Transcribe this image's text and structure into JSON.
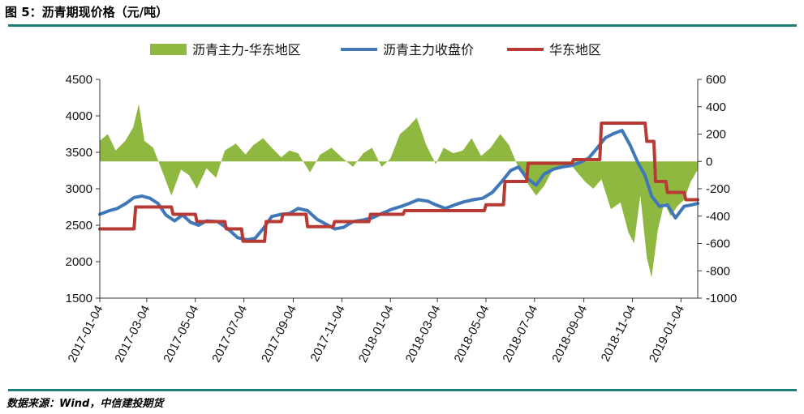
{
  "figure": {
    "title": "图 5：沥青期现价格（元/吨）",
    "source": "数据来源：Wind，中信建投期货"
  },
  "chart_data": {
    "type": "line",
    "legend_position": "top",
    "grid": false,
    "x_ticks": [
      "2017-01-04",
      "2017-03-04",
      "2017-05-04",
      "2017-07-04",
      "2017-09-04",
      "2017-11-04",
      "2018-01-04",
      "2018-03-04",
      "2018-05-04",
      "2018-07-04",
      "2018-09-04",
      "2018-11-04",
      "2019-01-04"
    ],
    "xlim": [
      "2017-01-04",
      "2019-01-25"
    ],
    "y_left": {
      "min": 1500,
      "max": 4500,
      "ticks": [
        1500,
        2000,
        2500,
        3000,
        3500,
        4000,
        4500
      ]
    },
    "y_right": {
      "min": -1000,
      "max": 600,
      "ticks": [
        -1000,
        -800,
        -600,
        -400,
        -200,
        0,
        200,
        400,
        600
      ]
    },
    "series": [
      {
        "name": "沥青主力-华东地区",
        "type": "area",
        "axis": "right",
        "color": "#8fb840",
        "points": [
          [
            "2017-01-04",
            150
          ],
          [
            "2017-01-14",
            200
          ],
          [
            "2017-01-24",
            80
          ],
          [
            "2017-02-05",
            150
          ],
          [
            "2017-02-15",
            250
          ],
          [
            "2017-02-22",
            420
          ],
          [
            "2017-03-01",
            150
          ],
          [
            "2017-03-12",
            100
          ],
          [
            "2017-03-22",
            -50
          ],
          [
            "2017-04-04",
            -250
          ],
          [
            "2017-04-16",
            -60
          ],
          [
            "2017-04-26",
            -100
          ],
          [
            "2017-05-06",
            -200
          ],
          [
            "2017-05-18",
            -50
          ],
          [
            "2017-05-30",
            -120
          ],
          [
            "2017-06-10",
            80
          ],
          [
            "2017-06-24",
            130
          ],
          [
            "2017-07-06",
            50
          ],
          [
            "2017-07-16",
            120
          ],
          [
            "2017-07-28",
            170
          ],
          [
            "2017-08-08",
            100
          ],
          [
            "2017-08-20",
            30
          ],
          [
            "2017-08-30",
            80
          ],
          [
            "2017-09-10",
            60
          ],
          [
            "2017-09-25",
            -80
          ],
          [
            "2017-10-08",
            50
          ],
          [
            "2017-10-22",
            100
          ],
          [
            "2017-11-04",
            30
          ],
          [
            "2017-11-18",
            -40
          ],
          [
            "2017-12-01",
            60
          ],
          [
            "2017-12-12",
            100
          ],
          [
            "2017-12-24",
            -40
          ],
          [
            "2018-01-04",
            20
          ],
          [
            "2018-01-16",
            200
          ],
          [
            "2018-01-26",
            250
          ],
          [
            "2018-02-06",
            320
          ],
          [
            "2018-02-18",
            120
          ],
          [
            "2018-03-02",
            -20
          ],
          [
            "2018-03-12",
            100
          ],
          [
            "2018-03-24",
            60
          ],
          [
            "2018-04-05",
            80
          ],
          [
            "2018-04-16",
            170
          ],
          [
            "2018-04-28",
            40
          ],
          [
            "2018-05-10",
            100
          ],
          [
            "2018-05-22",
            200
          ],
          [
            "2018-06-02",
            120
          ],
          [
            "2018-06-12",
            -20
          ],
          [
            "2018-06-24",
            -150
          ],
          [
            "2018-07-06",
            -250
          ],
          [
            "2018-07-16",
            -180
          ],
          [
            "2018-07-26",
            -70
          ],
          [
            "2018-08-06",
            -50
          ],
          [
            "2018-08-18",
            -20
          ],
          [
            "2018-08-28",
            -90
          ],
          [
            "2018-09-06",
            -150
          ],
          [
            "2018-09-16",
            -200
          ],
          [
            "2018-09-26",
            -130
          ],
          [
            "2018-10-08",
            -350
          ],
          [
            "2018-10-20",
            -300
          ],
          [
            "2018-10-30",
            -520
          ],
          [
            "2018-11-06",
            -600
          ],
          [
            "2018-11-14",
            -250
          ],
          [
            "2018-11-22",
            -700
          ],
          [
            "2018-11-28",
            -850
          ],
          [
            "2018-12-06",
            -500
          ],
          [
            "2018-12-14",
            -300
          ],
          [
            "2018-12-22",
            -400
          ],
          [
            "2018-12-30",
            -330
          ],
          [
            "2019-01-08",
            -280
          ],
          [
            "2019-01-16",
            -150
          ],
          [
            "2019-01-25",
            -60
          ]
        ]
      },
      {
        "name": "沥青主力收盘价",
        "type": "line",
        "axis": "left",
        "color": "#3f77b8",
        "points": [
          [
            "2017-01-04",
            2650
          ],
          [
            "2017-01-16",
            2700
          ],
          [
            "2017-01-26",
            2730
          ],
          [
            "2017-02-06",
            2800
          ],
          [
            "2017-02-16",
            2880
          ],
          [
            "2017-02-26",
            2900
          ],
          [
            "2017-03-08",
            2870
          ],
          [
            "2017-03-18",
            2800
          ],
          [
            "2017-03-28",
            2640
          ],
          [
            "2017-04-08",
            2560
          ],
          [
            "2017-04-18",
            2640
          ],
          [
            "2017-04-28",
            2540
          ],
          [
            "2017-05-08",
            2500
          ],
          [
            "2017-05-18",
            2560
          ],
          [
            "2017-06-01",
            2550
          ],
          [
            "2017-06-14",
            2450
          ],
          [
            "2017-06-26",
            2330
          ],
          [
            "2017-07-08",
            2300
          ],
          [
            "2017-07-18",
            2320
          ],
          [
            "2017-07-28",
            2450
          ],
          [
            "2017-08-08",
            2620
          ],
          [
            "2017-08-20",
            2650
          ],
          [
            "2017-08-30",
            2660
          ],
          [
            "2017-09-10",
            2730
          ],
          [
            "2017-09-22",
            2700
          ],
          [
            "2017-10-04",
            2580
          ],
          [
            "2017-10-16",
            2510
          ],
          [
            "2017-10-26",
            2450
          ],
          [
            "2017-11-06",
            2470
          ],
          [
            "2017-11-18",
            2550
          ],
          [
            "2017-11-30",
            2570
          ],
          [
            "2017-12-12",
            2600
          ],
          [
            "2017-12-24",
            2660
          ],
          [
            "2018-01-06",
            2720
          ],
          [
            "2018-01-18",
            2760
          ],
          [
            "2018-01-28",
            2800
          ],
          [
            "2018-02-08",
            2850
          ],
          [
            "2018-02-20",
            2830
          ],
          [
            "2018-03-02",
            2780
          ],
          [
            "2018-03-14",
            2730
          ],
          [
            "2018-03-26",
            2780
          ],
          [
            "2018-04-06",
            2820
          ],
          [
            "2018-04-18",
            2850
          ],
          [
            "2018-04-30",
            2870
          ],
          [
            "2018-05-12",
            2950
          ],
          [
            "2018-05-24",
            3100
          ],
          [
            "2018-06-04",
            3250
          ],
          [
            "2018-06-14",
            3300
          ],
          [
            "2018-06-24",
            3150
          ],
          [
            "2018-07-06",
            3050
          ],
          [
            "2018-07-16",
            3200
          ],
          [
            "2018-07-28",
            3270
          ],
          [
            "2018-08-08",
            3300
          ],
          [
            "2018-08-20",
            3320
          ],
          [
            "2018-08-30",
            3360
          ],
          [
            "2018-09-10",
            3420
          ],
          [
            "2018-09-20",
            3550
          ],
          [
            "2018-10-01",
            3700
          ],
          [
            "2018-10-12",
            3760
          ],
          [
            "2018-10-22",
            3800
          ],
          [
            "2018-11-01",
            3600
          ],
          [
            "2018-11-10",
            3380
          ],
          [
            "2018-11-20",
            3180
          ],
          [
            "2018-11-28",
            2900
          ],
          [
            "2018-12-08",
            2760
          ],
          [
            "2018-12-18",
            2780
          ],
          [
            "2018-12-28",
            2600
          ],
          [
            "2019-01-08",
            2760
          ],
          [
            "2019-01-18",
            2780
          ],
          [
            "2019-01-25",
            2800
          ]
        ]
      },
      {
        "name": "华东地区",
        "type": "step",
        "axis": "left",
        "color": "#b83a34",
        "points": [
          [
            "2017-01-04",
            2450
          ],
          [
            "2017-02-16",
            2450
          ],
          [
            "2017-02-18",
            2750
          ],
          [
            "2017-04-04",
            2750
          ],
          [
            "2017-04-06",
            2650
          ],
          [
            "2017-05-04",
            2650
          ],
          [
            "2017-05-06",
            2550
          ],
          [
            "2017-06-10",
            2550
          ],
          [
            "2017-06-12",
            2450
          ],
          [
            "2017-07-01",
            2450
          ],
          [
            "2017-07-03",
            2280
          ],
          [
            "2017-07-30",
            2280
          ],
          [
            "2017-08-01",
            2550
          ],
          [
            "2017-08-20",
            2550
          ],
          [
            "2017-08-22",
            2650
          ],
          [
            "2017-09-20",
            2650
          ],
          [
            "2017-09-22",
            2480
          ],
          [
            "2017-10-24",
            2480
          ],
          [
            "2017-10-26",
            2550
          ],
          [
            "2017-12-08",
            2550
          ],
          [
            "2017-12-10",
            2650
          ],
          [
            "2018-01-20",
            2650
          ],
          [
            "2018-01-22",
            2700
          ],
          [
            "2018-05-02",
            2700
          ],
          [
            "2018-05-04",
            2780
          ],
          [
            "2018-05-26",
            2780
          ],
          [
            "2018-05-28",
            3100
          ],
          [
            "2018-06-24",
            3100
          ],
          [
            "2018-06-26",
            3350
          ],
          [
            "2018-08-20",
            3350
          ],
          [
            "2018-08-22",
            3400
          ],
          [
            "2018-09-24",
            3400
          ],
          [
            "2018-09-26",
            3900
          ],
          [
            "2018-11-20",
            3900
          ],
          [
            "2018-11-22",
            3650
          ],
          [
            "2018-12-01",
            3650
          ],
          [
            "2018-12-03",
            3100
          ],
          [
            "2018-12-16",
            3100
          ],
          [
            "2018-12-18",
            2950
          ],
          [
            "2019-01-08",
            2950
          ],
          [
            "2019-01-10",
            2850
          ],
          [
            "2019-01-25",
            2850
          ]
        ]
      }
    ]
  }
}
